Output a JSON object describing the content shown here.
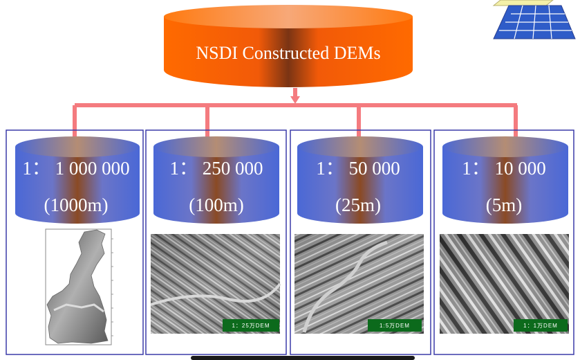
{
  "title": "NSDI Constructed DEMs",
  "colors": {
    "arrow": "#f47b7f",
    "panel_border": "#3a3aa8",
    "top_cylinder": "#ff6a00",
    "cylinder_blue": "#5a76d8",
    "cylinder_brown": "#8a4a26",
    "caption_bg": "#0c6a1c"
  },
  "columns": [
    {
      "scale": "1： 1 000 000",
      "resolution": "(1000m)",
      "image": "shaded-relief-map-province",
      "caption": ""
    },
    {
      "scale": "1： 250 000",
      "resolution": "(100m)",
      "image": "hillshade-terrain",
      "caption": "1：25万DEM"
    },
    {
      "scale": "1： 50 000",
      "resolution": "(25m)",
      "image": "hillshade-terrain",
      "caption": "1:5万DEM"
    },
    {
      "scale": "1： 10 000",
      "resolution": "(5m)",
      "image": "hillshade-terrain",
      "caption": "1：1万DEM"
    }
  ],
  "icons": [
    "grid-layers-icon"
  ]
}
